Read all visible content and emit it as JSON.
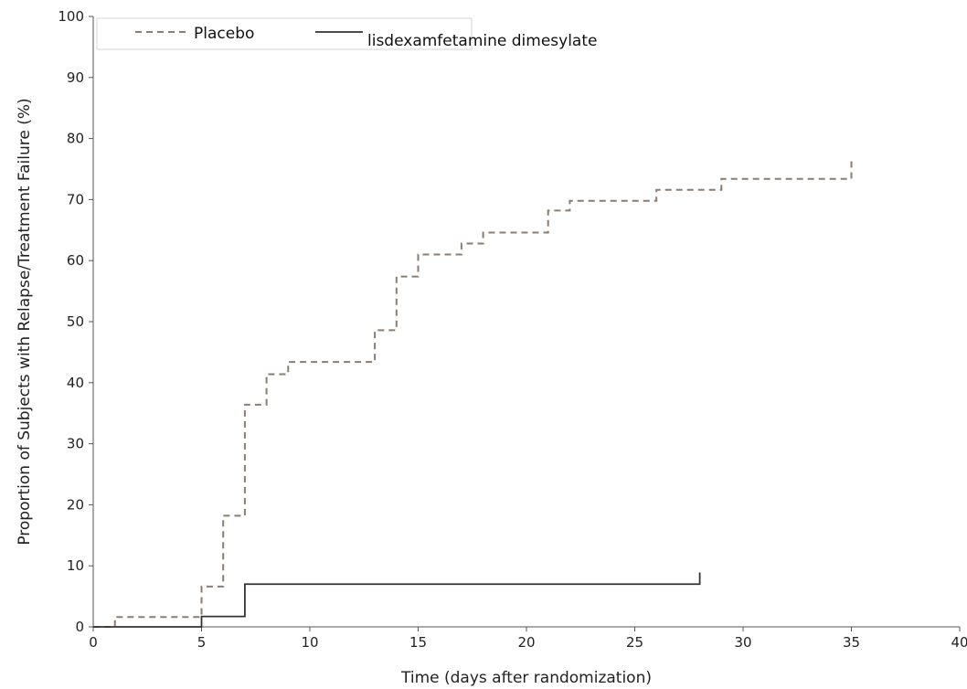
{
  "chart_data": {
    "type": "line",
    "step": true,
    "xlabel": "Time (days after randomization)",
    "ylabel": "Proportion of Subjects with Relapse/Treatment Failure (%)",
    "xlim": [
      0,
      40
    ],
    "ylim": [
      0,
      100
    ],
    "xticks": [
      0,
      5,
      10,
      15,
      20,
      25,
      30,
      35,
      40
    ],
    "yticks": [
      0,
      10,
      20,
      30,
      40,
      50,
      60,
      70,
      80,
      90,
      100
    ],
    "grid": false,
    "legend_position": "top-left",
    "series": [
      {
        "name": "Placebo",
        "style": "dashed",
        "color": "#8a7d72",
        "x": [
          0,
          1,
          5,
          6,
          7,
          8,
          9,
          13,
          14,
          15,
          17,
          18,
          21,
          22,
          26,
          29,
          35,
          35
        ],
        "y": [
          0,
          1.6,
          6.6,
          18.2,
          36.4,
          41.4,
          43.4,
          48.6,
          57.4,
          61.0,
          62.8,
          64.6,
          68.2,
          69.8,
          71.6,
          73.4,
          73.4,
          77.0
        ]
      },
      {
        "name": "lisdexamfetamine dimesylate",
        "style": "solid",
        "color": "#333333",
        "x": [
          0,
          5,
          7,
          28,
          28
        ],
        "y": [
          0,
          1.7,
          7.0,
          7.0,
          8.9
        ]
      }
    ]
  }
}
